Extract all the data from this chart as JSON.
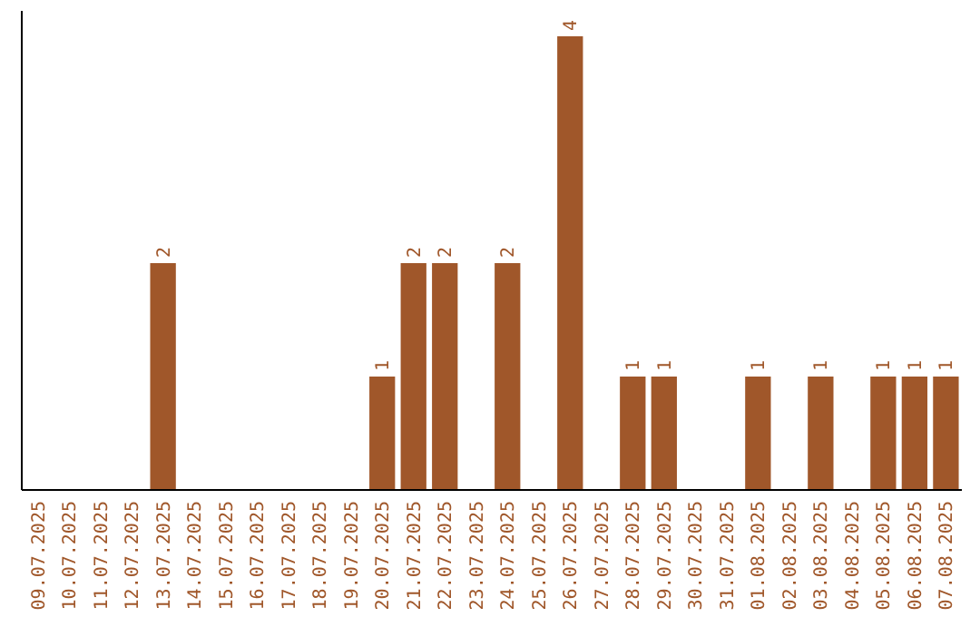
{
  "chart_data": {
    "type": "bar",
    "categories": [
      "09.07.2025",
      "10.07.2025",
      "11.07.2025",
      "12.07.2025",
      "13.07.2025",
      "14.07.2025",
      "15.07.2025",
      "16.07.2025",
      "17.07.2025",
      "18.07.2025",
      "19.07.2025",
      "20.07.2025",
      "21.07.2025",
      "22.07.2025",
      "23.07.2025",
      "24.07.2025",
      "25.07.2025",
      "26.07.2025",
      "27.07.2025",
      "28.07.2025",
      "29.07.2025",
      "30.07.2025",
      "31.07.2025",
      "01.08.2025",
      "02.08.2025",
      "03.08.2025",
      "04.08.2025",
      "05.08.2025",
      "06.08.2025",
      "07.08.2025"
    ],
    "values": [
      0,
      0,
      0,
      0,
      2,
      0,
      0,
      0,
      0,
      0,
      0,
      1,
      2,
      2,
      0,
      2,
      0,
      4,
      0,
      1,
      1,
      0,
      0,
      1,
      0,
      1,
      0,
      1,
      1,
      1
    ],
    "value_labels": [
      null,
      null,
      null,
      null,
      "2",
      null,
      null,
      null,
      null,
      null,
      null,
      "1",
      "2",
      "2",
      null,
      "2",
      null,
      "4",
      null,
      "1",
      "1",
      null,
      null,
      "1",
      null,
      "1",
      null,
      "1",
      "1",
      "1"
    ],
    "color": "#a0572a",
    "tick_labels": "x"
  }
}
